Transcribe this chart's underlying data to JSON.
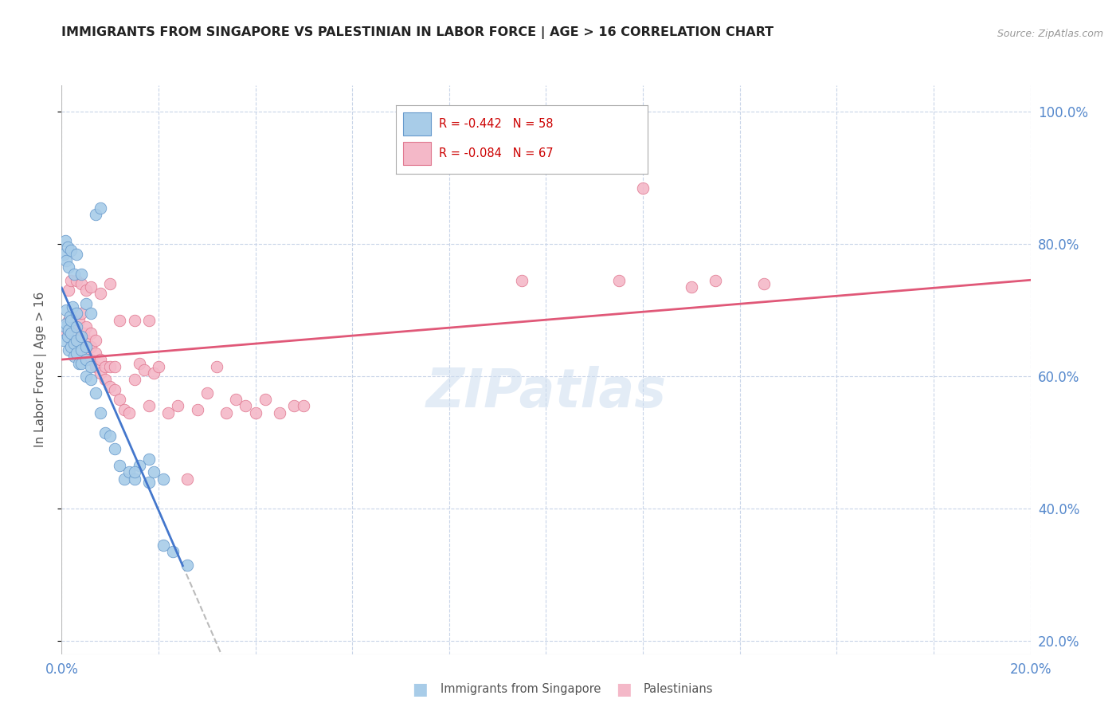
{
  "title": "IMMIGRANTS FROM SINGAPORE VS PALESTINIAN IN LABOR FORCE | AGE > 16 CORRELATION CHART",
  "source": "Source: ZipAtlas.com",
  "ylabel": "In Labor Force | Age > 16",
  "right_yticks": [
    "100.0%",
    "80.0%",
    "60.0%",
    "40.0%",
    "20.0%"
  ],
  "right_ytick_vals": [
    1.0,
    0.8,
    0.6,
    0.4,
    0.2
  ],
  "singapore_color": "#a8cce8",
  "singapore_edge": "#6699cc",
  "palestinian_color": "#f4b8c8",
  "palestinian_edge": "#e07890",
  "watermark": "ZIPatlas",
  "background_color": "#ffffff",
  "grid_color": "#c8d4e8",
  "title_color": "#222222",
  "axis_color": "#5588cc",
  "legend_sg_color": "#a8cce8",
  "legend_pa_color": "#f4b8c8",
  "legend_text_color": "#cc0000",
  "trend_sg_color": "#4477cc",
  "trend_pa_color": "#e05878",
  "trend_dash_color": "#bbbbbb",
  "singapore_points_x": [
    0.0005,
    0.0008,
    0.001,
    0.001,
    0.0012,
    0.0015,
    0.0015,
    0.0018,
    0.002,
    0.002,
    0.002,
    0.0022,
    0.0025,
    0.0025,
    0.003,
    0.003,
    0.003,
    0.003,
    0.0035,
    0.004,
    0.004,
    0.004,
    0.005,
    0.005,
    0.005,
    0.006,
    0.006,
    0.007,
    0.008,
    0.009,
    0.01,
    0.011,
    0.012,
    0.013,
    0.014,
    0.015,
    0.016,
    0.018,
    0.019,
    0.021,
    0.0005,
    0.0007,
    0.001,
    0.0012,
    0.0015,
    0.002,
    0.0025,
    0.003,
    0.004,
    0.005,
    0.006,
    0.007,
    0.008,
    0.015,
    0.018,
    0.021,
    0.023,
    0.026
  ],
  "singapore_points_y": [
    0.655,
    0.675,
    0.68,
    0.7,
    0.66,
    0.64,
    0.67,
    0.69,
    0.645,
    0.665,
    0.685,
    0.705,
    0.63,
    0.65,
    0.635,
    0.655,
    0.675,
    0.695,
    0.62,
    0.62,
    0.64,
    0.66,
    0.6,
    0.625,
    0.645,
    0.595,
    0.615,
    0.575,
    0.545,
    0.515,
    0.51,
    0.49,
    0.465,
    0.445,
    0.455,
    0.445,
    0.465,
    0.44,
    0.455,
    0.445,
    0.785,
    0.805,
    0.775,
    0.795,
    0.765,
    0.79,
    0.755,
    0.785,
    0.755,
    0.71,
    0.695,
    0.845,
    0.855,
    0.455,
    0.475,
    0.345,
    0.335,
    0.315
  ],
  "palestinian_points_x": [
    0.001,
    0.0015,
    0.002,
    0.0025,
    0.003,
    0.003,
    0.0035,
    0.004,
    0.004,
    0.0045,
    0.005,
    0.005,
    0.005,
    0.006,
    0.006,
    0.006,
    0.007,
    0.007,
    0.007,
    0.008,
    0.008,
    0.009,
    0.009,
    0.01,
    0.01,
    0.011,
    0.011,
    0.012,
    0.013,
    0.014,
    0.015,
    0.016,
    0.017,
    0.018,
    0.019,
    0.02,
    0.022,
    0.024,
    0.026,
    0.028,
    0.03,
    0.032,
    0.034,
    0.036,
    0.038,
    0.04,
    0.042,
    0.045,
    0.048,
    0.05,
    0.0015,
    0.002,
    0.003,
    0.004,
    0.005,
    0.006,
    0.008,
    0.01,
    0.012,
    0.015,
    0.018,
    0.12,
    0.135,
    0.145,
    0.13,
    0.115,
    0.095
  ],
  "palestinian_points_y": [
    0.665,
    0.685,
    0.655,
    0.675,
    0.655,
    0.675,
    0.685,
    0.665,
    0.695,
    0.665,
    0.635,
    0.655,
    0.675,
    0.625,
    0.645,
    0.665,
    0.615,
    0.635,
    0.655,
    0.605,
    0.625,
    0.595,
    0.615,
    0.585,
    0.615,
    0.58,
    0.615,
    0.565,
    0.55,
    0.545,
    0.595,
    0.62,
    0.61,
    0.555,
    0.605,
    0.615,
    0.545,
    0.555,
    0.445,
    0.55,
    0.575,
    0.615,
    0.545,
    0.565,
    0.555,
    0.545,
    0.565,
    0.545,
    0.555,
    0.555,
    0.73,
    0.745,
    0.745,
    0.74,
    0.73,
    0.735,
    0.725,
    0.74,
    0.685,
    0.685,
    0.685,
    0.885,
    0.745,
    0.74,
    0.735,
    0.745,
    0.745
  ]
}
